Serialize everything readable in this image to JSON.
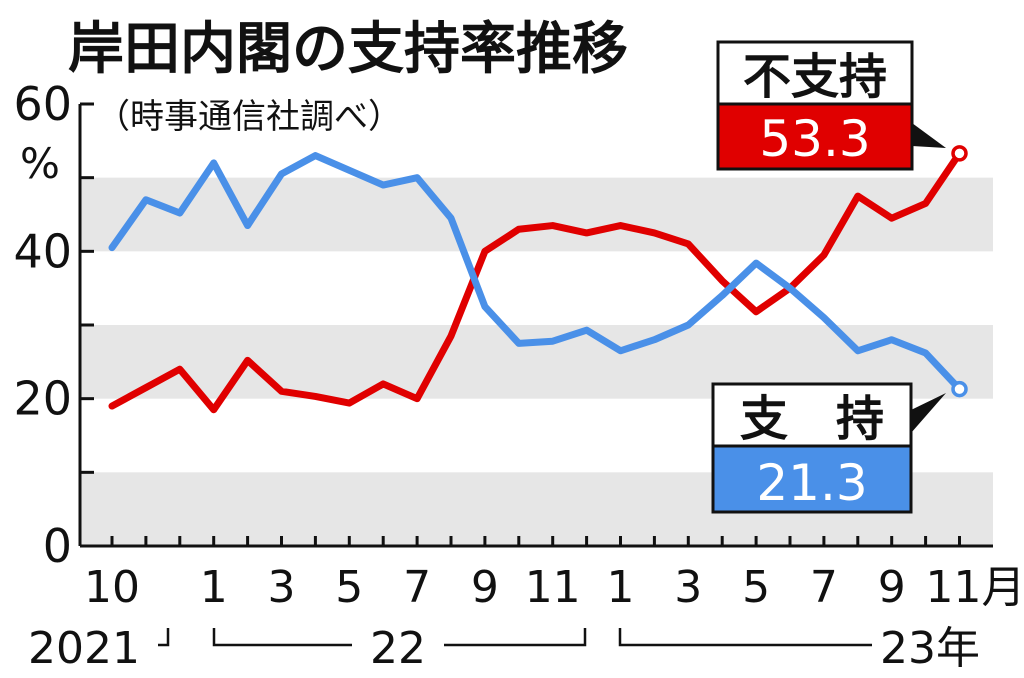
{
  "chart_data": {
    "type": "line",
    "title": "岸田内閣の支持率推移",
    "subtitle": "（時事通信社調べ）",
    "ylabel": "%",
    "ylim": [
      0,
      60
    ],
    "yticks": [
      "0",
      "20",
      "40",
      "60"
    ],
    "grid": "alternating-bands",
    "x": [
      "2021-10",
      "2021-11",
      "2021-12",
      "2022-01",
      "2022-02",
      "2022-03",
      "2022-04",
      "2022-05",
      "2022-06",
      "2022-07",
      "2022-08",
      "2022-09",
      "2022-10",
      "2022-11",
      "2022-12",
      "2023-01",
      "2023-02",
      "2023-03",
      "2023-04",
      "2023-05",
      "2023-06",
      "2023-07",
      "2023-08",
      "2023-09",
      "2023-10",
      "2023-11"
    ],
    "xtick_labels": [
      "10",
      "1",
      "3",
      "5",
      "7",
      "9",
      "11",
      "1",
      "3",
      "5",
      "7",
      "9",
      "11月"
    ],
    "year_labels": [
      "2021",
      "22",
      "23年"
    ],
    "series": [
      {
        "name": "不支持",
        "color": "#e00000",
        "values": [
          19,
          21.5,
          24,
          18.5,
          25.2,
          21,
          20.3,
          19.4,
          22,
          20,
          28.5,
          40,
          43,
          43.5,
          42.5,
          43.5,
          42.5,
          41,
          36,
          31.8,
          35,
          39.5,
          47.5,
          44.5,
          46.5,
          53.3
        ]
      },
      {
        "name": "支持",
        "color": "#4a90e8",
        "values": [
          40.5,
          47,
          45.2,
          52,
          43.5,
          50.5,
          53,
          51,
          49,
          50,
          44.5,
          32.5,
          27.5,
          27.8,
          29.3,
          26.5,
          28,
          30,
          34,
          38.4,
          35,
          31,
          26.5,
          28,
          26.2,
          21.3
        ]
      }
    ],
    "callouts": [
      {
        "label": "不支持",
        "value": "53.3"
      },
      {
        "label": "支　持",
        "value": "21.3"
      }
    ]
  }
}
